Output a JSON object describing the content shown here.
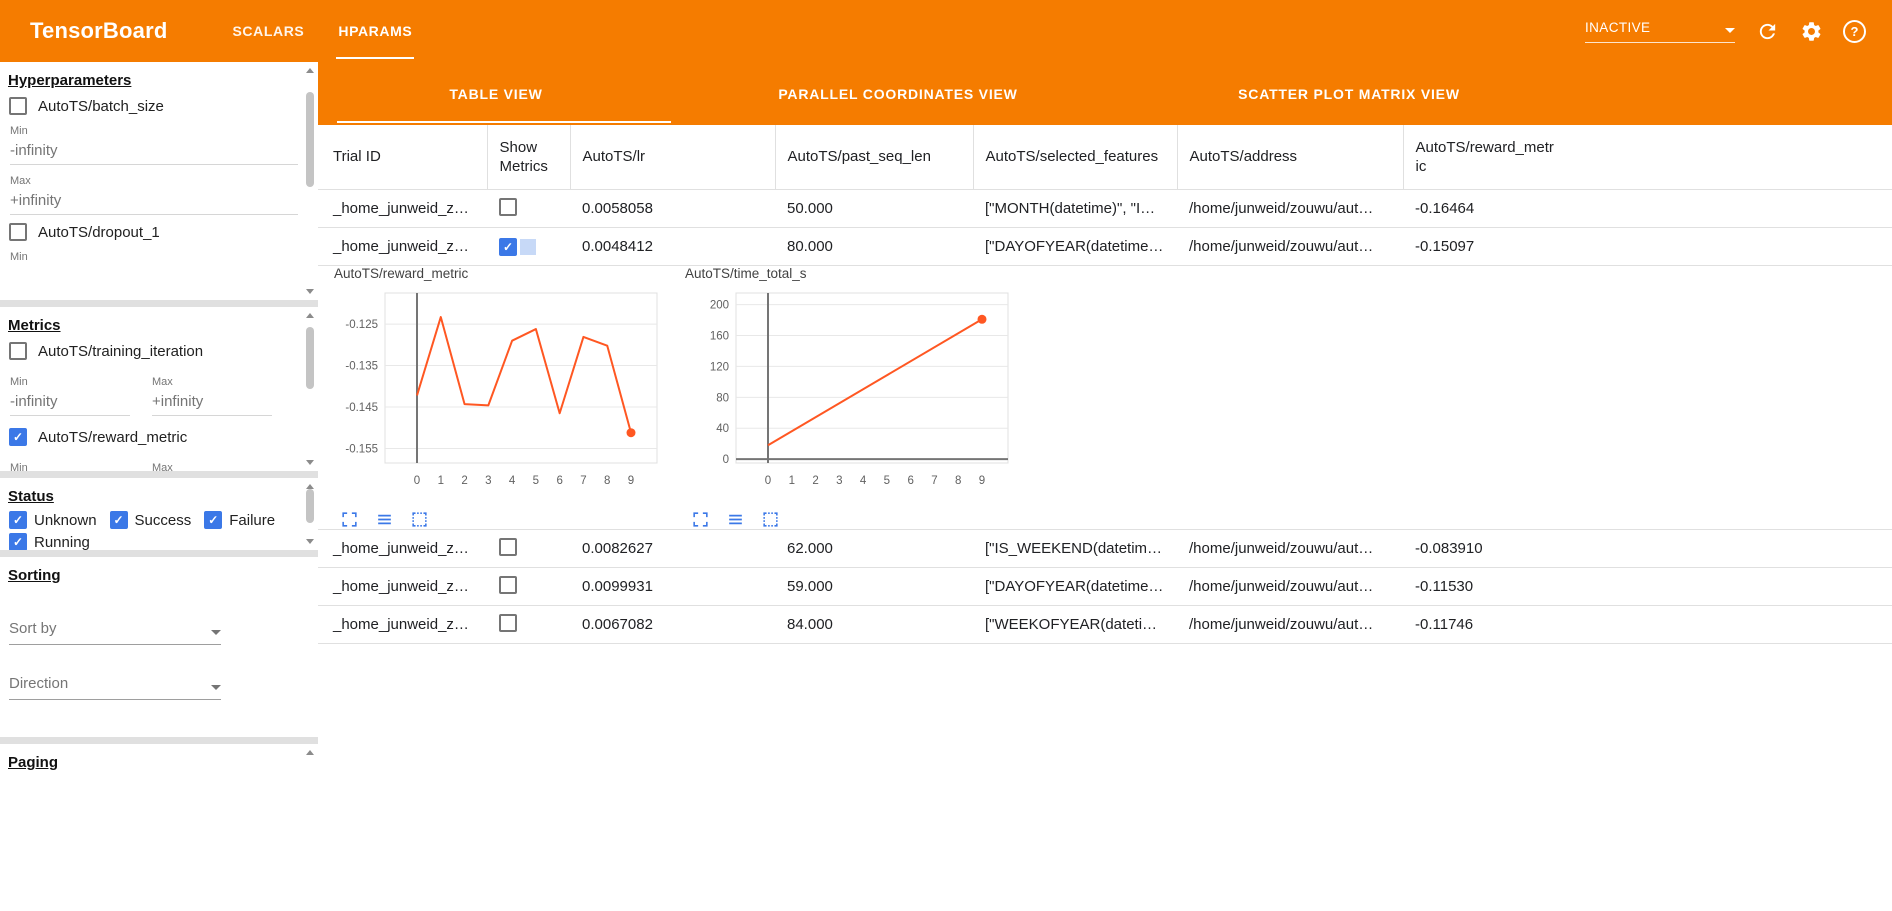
{
  "colors": {
    "header_orange": "#f57c00",
    "checkbox_blue": "#3b78e7",
    "chart_line_orange": "#ff5722"
  },
  "header": {
    "app_title": "TensorBoard",
    "nav_tabs": [
      {
        "label": "SCALARS",
        "active": false
      },
      {
        "label": "HPARAMS",
        "active": true
      }
    ],
    "run_status": {
      "value": "INACTIVE"
    },
    "icons": [
      "chevron-down-icon",
      "refresh-icon",
      "settings-icon",
      "help-icon"
    ]
  },
  "sidebar": {
    "hyperparameters": {
      "title": "Hyperparameters",
      "rows": [
        {
          "label": "AutoTS/batch_size",
          "checked": false,
          "fields": [
            {
              "label": "Min",
              "value": "-infinity"
            },
            {
              "label": "Max",
              "value": "+infinity"
            }
          ]
        },
        {
          "label": "AutoTS/dropout_1",
          "checked": false,
          "fields": [
            {
              "label": "Min"
            }
          ]
        }
      ]
    },
    "metrics": {
      "title": "Metrics",
      "rows": [
        {
          "label": "AutoTS/training_iteration",
          "checked": false,
          "min_label": "Min",
          "min_value": "-infinity",
          "max_label": "Max",
          "max_value": "+infinity"
        },
        {
          "label": "AutoTS/reward_metric",
          "checked": true,
          "min_label": "Min",
          "max_label": "Max"
        }
      ]
    },
    "status": {
      "title": "Status",
      "items": [
        {
          "label": "Unknown",
          "checked": true
        },
        {
          "label": "Success",
          "checked": true
        },
        {
          "label": "Failure",
          "checked": true
        },
        {
          "label": "Running",
          "checked": true
        }
      ]
    },
    "sorting": {
      "title": "Sorting",
      "sort_by": {
        "label": "Sort by"
      },
      "direction": {
        "label": "Direction"
      }
    },
    "paging": {
      "title": "Paging"
    }
  },
  "main": {
    "view_tabs": [
      {
        "label": "TABLE VIEW",
        "active": true
      },
      {
        "label": "PARALLEL COORDINATES VIEW",
        "active": false
      },
      {
        "label": "SCATTER PLOT MATRIX VIEW",
        "active": false
      }
    ],
    "table": {
      "columns": [
        "Trial ID",
        "Show Metrics",
        "AutoTS/lr",
        "AutoTS/past_seq_len",
        "AutoTS/selected_features",
        "AutoTS/address",
        "AutoTS/reward_metric"
      ],
      "rows": [
        {
          "trial_id": "_home_junweid_z…",
          "show_metrics": false,
          "lr": "0.0058058",
          "past_seq_len": "50.000",
          "selected_features": "[\"MONTH(datetime)\", \"I…",
          "address": "/home/junweid/zouwu/aut…",
          "reward_metric": "-0.16464"
        },
        {
          "trial_id": "_home_junweid_z…",
          "show_metrics": true,
          "lr": "0.0048412",
          "past_seq_len": "80.000",
          "selected_features": "[\"DAYOFYEAR(datetime…",
          "address": "/home/junweid/zouwu/aut…",
          "reward_metric": "-0.15097"
        },
        {
          "trial_id": "_home_junweid_z…",
          "show_metrics": false,
          "lr": "0.0082627",
          "past_seq_len": "62.000",
          "selected_features": "[\"IS_WEEKEND(datetim…",
          "address": "/home/junweid/zouwu/aut…",
          "reward_metric": "-0.083910"
        },
        {
          "trial_id": "_home_junweid_z…",
          "show_metrics": false,
          "lr": "0.0099931",
          "past_seq_len": "59.000",
          "selected_features": "[\"DAYOFYEAR(datetime…",
          "address": "/home/junweid/zouwu/aut…",
          "reward_metric": "-0.11530"
        },
        {
          "trial_id": "_home_junweid_z…",
          "show_metrics": false,
          "lr": "0.0067082",
          "past_seq_len": "84.000",
          "selected_features": "[\"WEEKOFYEAR(dateti…",
          "address": "/home/junweid/zouwu/aut…",
          "reward_metric": "-0.11746"
        }
      ]
    },
    "chart_toolbar_icons": [
      "expand-icon",
      "lines-icon",
      "marquee-zoom-icon"
    ]
  },
  "chart_data": [
    {
      "type": "line",
      "title": "AutoTS/reward_metric",
      "x": [
        0,
        1,
        2,
        3,
        4,
        5,
        6,
        7,
        8,
        9
      ],
      "values": [
        -0.1422,
        -0.1233,
        -0.1443,
        -0.1446,
        -0.129,
        -0.1262,
        -0.1465,
        -0.1281,
        -0.1302,
        -0.1512
      ],
      "xticks": [
        0,
        1,
        2,
        3,
        4,
        5,
        6,
        7,
        8,
        9
      ],
      "yticks": [
        -0.125,
        -0.135,
        -0.145,
        -0.155
      ],
      "ylim": [
        -0.1585,
        -0.1175
      ],
      "xlabel": "",
      "ylabel": "",
      "grid": true,
      "legend": "none",
      "color": "#ff5722",
      "end_marker": true
    },
    {
      "type": "line",
      "title": "AutoTS/time_total_s",
      "x": [
        0,
        9
      ],
      "values": [
        18,
        181
      ],
      "xticks": [
        0,
        1,
        2,
        3,
        4,
        5,
        6,
        7,
        8,
        9
      ],
      "yticks": [
        0,
        40,
        80,
        120,
        160,
        200
      ],
      "ylim": [
        -5,
        215
      ],
      "xlabel": "",
      "ylabel": "",
      "grid": true,
      "legend": "none",
      "color": "#ff5722",
      "end_marker": true
    }
  ]
}
